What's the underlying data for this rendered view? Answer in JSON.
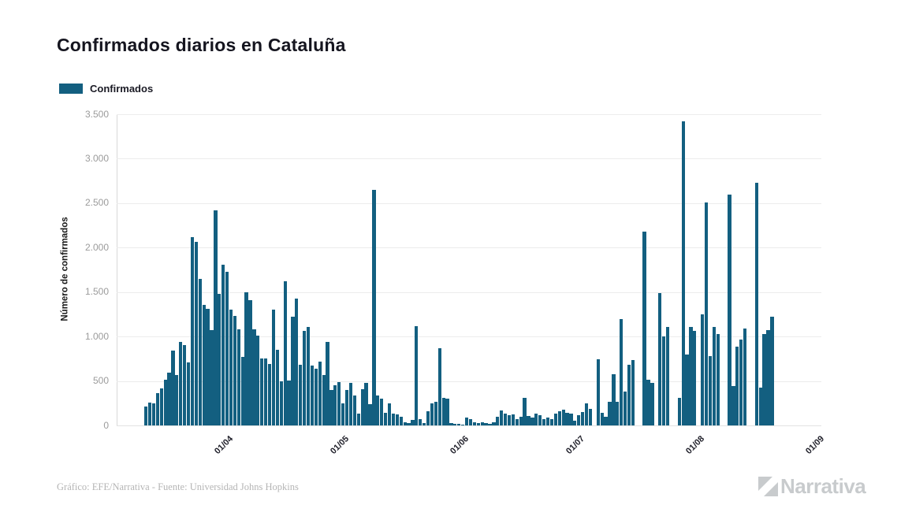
{
  "header": {
    "title": "Confirmados diarios en Cataluña"
  },
  "legend": {
    "items": [
      {
        "label": "Confirmados",
        "color": "#135f80"
      }
    ]
  },
  "chart_data": {
    "type": "bar",
    "title": "Confirmados diarios en Cataluña",
    "xlabel": "",
    "ylabel": "Número de confirmados",
    "ylim": [
      0,
      3500
    ],
    "grid": true,
    "legend_position": "top-left",
    "bar_color": "#135f80",
    "y_ticks": [
      "0",
      "500",
      "1.000",
      "1.500",
      "2.000",
      "2.500",
      "3.000",
      "3.500"
    ],
    "y_tick_values": [
      0,
      500,
      1000,
      1500,
      2000,
      2500,
      3000,
      3500
    ],
    "x_ticks": [
      "01/04",
      "01/05",
      "01/06",
      "01/07",
      "01/08",
      "01/09"
    ],
    "x_tick_indices": [
      19,
      49,
      80,
      110,
      141,
      172
    ],
    "series": [
      {
        "name": "Confirmados",
        "color": "#135f80"
      }
    ],
    "dates": [
      "13/03",
      "14/03",
      "15/03",
      "16/03",
      "17/03",
      "18/03",
      "19/03",
      "20/03",
      "21/03",
      "22/03",
      "23/03",
      "24/03",
      "25/03",
      "26/03",
      "27/03",
      "28/03",
      "29/03",
      "30/03",
      "31/03",
      "01/04",
      "02/04",
      "03/04",
      "04/04",
      "05/04",
      "06/04",
      "07/04",
      "08/04",
      "09/04",
      "10/04",
      "11/04",
      "12/04",
      "13/04",
      "14/04",
      "15/04",
      "16/04",
      "17/04",
      "18/04",
      "19/04",
      "20/04",
      "21/04",
      "22/04",
      "23/04",
      "24/04",
      "25/04",
      "26/04",
      "27/04",
      "28/04",
      "29/04",
      "30/04",
      "01/05",
      "02/05",
      "03/05",
      "04/05",
      "05/05",
      "06/05",
      "07/05",
      "08/05",
      "09/05",
      "10/05",
      "11/05",
      "12/05",
      "13/05",
      "14/05",
      "15/05",
      "16/05",
      "17/05",
      "18/05",
      "19/05",
      "20/05",
      "21/05",
      "22/05",
      "23/05",
      "24/05",
      "25/05",
      "26/05",
      "27/05",
      "28/05",
      "29/05",
      "30/05",
      "31/05",
      "01/06",
      "02/06",
      "03/06",
      "04/06",
      "05/06",
      "06/06",
      "07/06",
      "08/06",
      "09/06",
      "10/06",
      "11/06",
      "12/06",
      "13/06",
      "14/06",
      "15/06",
      "16/06",
      "17/06",
      "18/06",
      "19/06",
      "20/06",
      "21/06",
      "22/06",
      "23/06",
      "24/06",
      "25/06",
      "26/06",
      "27/06",
      "28/06",
      "29/06",
      "30/06",
      "01/07",
      "02/07",
      "03/07",
      "04/07",
      "05/07",
      "06/07",
      "07/07",
      "08/07",
      "09/07",
      "10/07",
      "11/07",
      "12/07",
      "13/07",
      "14/07",
      "15/07",
      "16/07",
      "17/07",
      "18/07",
      "19/07",
      "20/07",
      "21/07",
      "22/07",
      "23/07",
      "24/07",
      "25/07",
      "26/07",
      "27/07",
      "28/07",
      "29/07",
      "30/07",
      "31/07",
      "01/08",
      "02/08",
      "03/08",
      "04/08",
      "05/08",
      "06/08",
      "07/08",
      "08/08",
      "09/08",
      "10/08",
      "11/08",
      "12/08",
      "13/08",
      "14/08",
      "15/08",
      "16/08",
      "17/08",
      "18/08",
      "19/08",
      "20/08",
      "21/08",
      "22/08"
    ],
    "values": [
      210,
      260,
      250,
      365,
      420,
      510,
      590,
      840,
      570,
      935,
      905,
      710,
      2120,
      2065,
      1650,
      1360,
      1310,
      1070,
      2420,
      1480,
      1810,
      1730,
      1300,
      1230,
      1080,
      770,
      1500,
      1410,
      1080,
      1010,
      755,
      750,
      690,
      1300,
      855,
      500,
      1625,
      505,
      1225,
      1430,
      680,
      1060,
      1105,
      670,
      640,
      720,
      570,
      935,
      395,
      455,
      490,
      250,
      400,
      475,
      340,
      130,
      405,
      480,
      235,
      2650,
      340,
      300,
      145,
      250,
      135,
      120,
      95,
      35,
      30,
      60,
      1120,
      70,
      30,
      160,
      250,
      265,
      865,
      310,
      300,
      25,
      20,
      15,
      10,
      85,
      70,
      35,
      30,
      40,
      30,
      20,
      40,
      95,
      165,
      135,
      115,
      125,
      70,
      95,
      310,
      105,
      85,
      130,
      115,
      70,
      85,
      70,
      130,
      160,
      175,
      145,
      130,
      55,
      115,
      155,
      250,
      190,
      0,
      745,
      145,
      100,
      270,
      580,
      265,
      1200,
      380,
      685,
      735,
      0,
      0,
      2180,
      510,
      480,
      0,
      1490,
      1000,
      1105,
      0,
      0,
      310,
      3420,
      800,
      1110,
      1065,
      0,
      1250,
      2510,
      780,
      1105,
      1025,
      0,
      0,
      2600,
      440,
      885,
      965,
      1090,
      0,
      0,
      2730,
      425,
      1025,
      1075,
      1225
    ]
  },
  "footer": {
    "credit": "Gráfico: EFE/Narrativa - Fuente: Universidad Johns Hopkins",
    "brand": "Narrativa"
  }
}
